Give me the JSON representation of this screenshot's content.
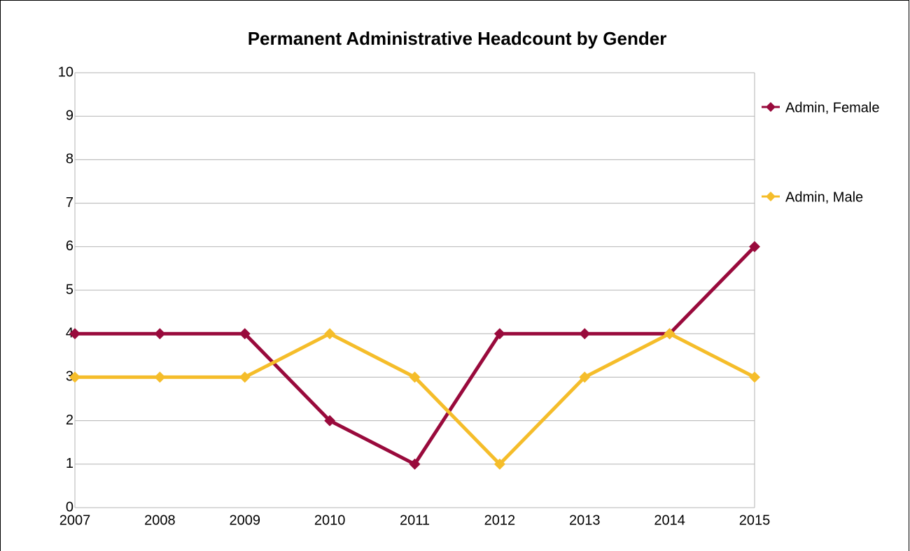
{
  "chart_data": {
    "type": "line",
    "title": "Permanent Administrative Headcount by Gender",
    "categories": [
      "2007",
      "2008",
      "2009",
      "2010",
      "2011",
      "2012",
      "2013",
      "2014",
      "2015"
    ],
    "series": [
      {
        "name": "Admin, Female",
        "color": "#990a3c",
        "values": [
          4,
          4,
          4,
          2,
          1,
          4,
          4,
          4,
          6
        ]
      },
      {
        "name": "Admin, Male",
        "color": "#f5bd2a",
        "values": [
          3,
          3,
          3,
          4,
          3,
          1,
          3,
          4,
          3
        ]
      }
    ],
    "ylim": [
      0,
      10
    ],
    "yticks": [
      0,
      1,
      2,
      3,
      4,
      5,
      6,
      7,
      8,
      9,
      10
    ],
    "grid": true,
    "legend": "right"
  }
}
